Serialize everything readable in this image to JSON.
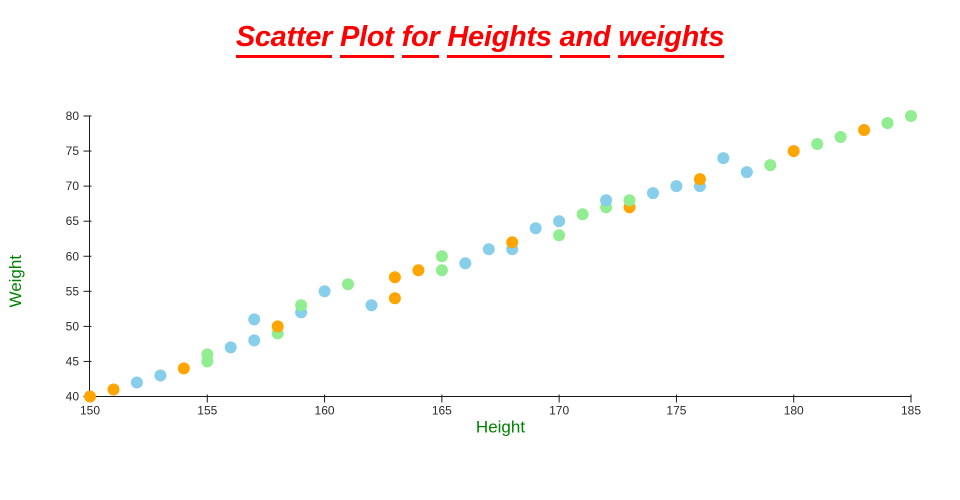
{
  "header": {
    "title": "Scatter Plot for Heights and weights",
    "title_color": "#ff0000"
  },
  "chart_data": {
    "type": "scatter",
    "title": "Scatter Plot for Heights and weights",
    "xlabel": "Height",
    "ylabel": "Weight",
    "xlim": [
      150,
      185
    ],
    "ylim": [
      40,
      80
    ],
    "x_ticks": [
      150,
      155,
      160,
      165,
      170,
      175,
      180,
      185
    ],
    "y_ticks": [
      40,
      45,
      50,
      55,
      60,
      65,
      70,
      75,
      80
    ],
    "grid": false,
    "legend": "none",
    "title_color": "#ff0000",
    "axis_label_color": "#008000",
    "tick_label_color": "#2b2b2b",
    "axis_line_color": "#1a1a1a",
    "marker_radius": 6,
    "colors": {
      "blue": "#87CEEB",
      "orange": "#FFA500",
      "green": "#90EE90"
    },
    "points": [
      [
        150,
        40,
        "orange"
      ],
      [
        151,
        41,
        "orange"
      ],
      [
        152,
        42,
        "blue"
      ],
      [
        153,
        43,
        "blue"
      ],
      [
        154,
        44,
        "orange"
      ],
      [
        155,
        45,
        "green"
      ],
      [
        155,
        46,
        "green"
      ],
      [
        156,
        47,
        "blue"
      ],
      [
        157,
        48,
        "blue"
      ],
      [
        157,
        51,
        "blue"
      ],
      [
        158,
        49,
        "green"
      ],
      [
        158,
        50,
        "orange"
      ],
      [
        159,
        52,
        "blue"
      ],
      [
        159,
        53,
        "green"
      ],
      [
        160,
        55,
        "blue"
      ],
      [
        161,
        56,
        "green"
      ],
      [
        162,
        53,
        "blue"
      ],
      [
        163,
        54,
        "orange"
      ],
      [
        163,
        57,
        "orange"
      ],
      [
        164,
        58,
        "orange"
      ],
      [
        165,
        58,
        "green"
      ],
      [
        165,
        60,
        "green"
      ],
      [
        166,
        59,
        "blue"
      ],
      [
        167,
        61,
        "blue"
      ],
      [
        168,
        61,
        "blue"
      ],
      [
        168,
        62,
        "orange"
      ],
      [
        169,
        64,
        "blue"
      ],
      [
        170,
        63,
        "green"
      ],
      [
        170,
        65,
        "blue"
      ],
      [
        171,
        66,
        "green"
      ],
      [
        172,
        67,
        "green"
      ],
      [
        172,
        68,
        "blue"
      ],
      [
        173,
        67,
        "orange"
      ],
      [
        173,
        68,
        "green"
      ],
      [
        174,
        69,
        "blue"
      ],
      [
        175,
        70,
        "blue"
      ],
      [
        176,
        70,
        "blue"
      ],
      [
        176,
        71,
        "orange"
      ],
      [
        177,
        74,
        "blue"
      ],
      [
        178,
        72,
        "blue"
      ],
      [
        179,
        73,
        "green"
      ],
      [
        180,
        75,
        "orange"
      ],
      [
        181,
        76,
        "green"
      ],
      [
        182,
        77,
        "green"
      ],
      [
        183,
        78,
        "orange"
      ],
      [
        184,
        79,
        "green"
      ],
      [
        185,
        80,
        "green"
      ]
    ]
  }
}
